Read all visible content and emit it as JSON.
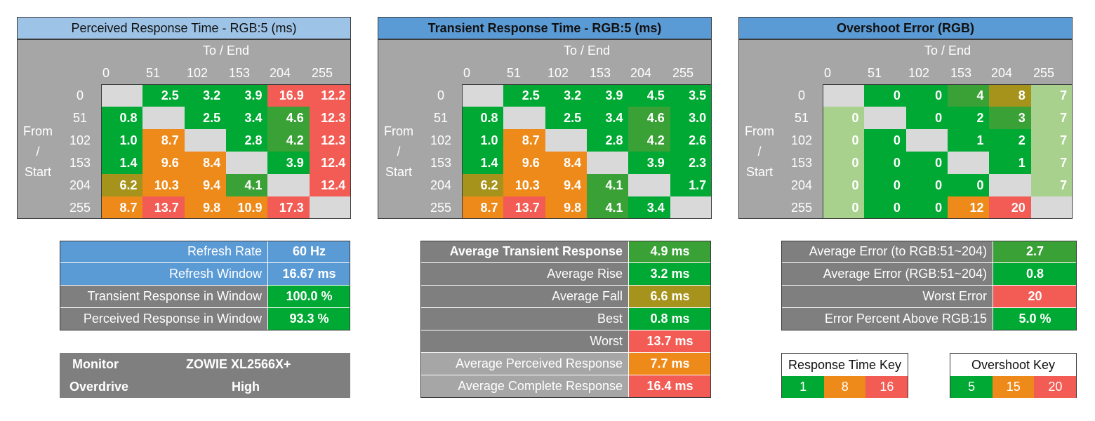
{
  "col_values": [
    "0",
    "51",
    "102",
    "153",
    "204",
    "255"
  ],
  "row_values": [
    "0",
    "51",
    "102",
    "153",
    "204",
    "255"
  ],
  "to_end_label": "To / End",
  "from_start_label": [
    "From",
    "/",
    "Start"
  ],
  "matrices": [
    {
      "title": "Perceived Response Time - RGB:5 (ms)",
      "rows": [
        [
          [
            "",
            "ry"
          ],
          [
            "2.5",
            "g"
          ],
          [
            "3.2",
            "g"
          ],
          [
            "3.9",
            "g"
          ],
          [
            "16.9",
            "rd"
          ],
          [
            "12.2",
            "rd"
          ]
        ],
        [
          [
            "0.8",
            "g"
          ],
          [
            "",
            "ry"
          ],
          [
            "2.5",
            "g"
          ],
          [
            "3.4",
            "g"
          ],
          [
            "4.6",
            "g2"
          ],
          [
            "12.3",
            "rd"
          ]
        ],
        [
          [
            "1.0",
            "g"
          ],
          [
            "8.7",
            "or"
          ],
          [
            "",
            "ry"
          ],
          [
            "2.8",
            "g"
          ],
          [
            "4.2",
            "g2"
          ],
          [
            "12.3",
            "rd"
          ]
        ],
        [
          [
            "1.4",
            "g"
          ],
          [
            "9.6",
            "or"
          ],
          [
            "8.4",
            "or"
          ],
          [
            "",
            "ry"
          ],
          [
            "3.9",
            "g"
          ],
          [
            "12.4",
            "rd"
          ]
        ],
        [
          [
            "6.2",
            "ol"
          ],
          [
            "10.3",
            "or"
          ],
          [
            "9.4",
            "or"
          ],
          [
            "4.1",
            "g2"
          ],
          [
            "",
            "ry"
          ],
          [
            "12.4",
            "rd"
          ]
        ],
        [
          [
            "8.7",
            "or"
          ],
          [
            "13.7",
            "rd"
          ],
          [
            "9.8",
            "or"
          ],
          [
            "10.9",
            "or"
          ],
          [
            "17.3",
            "rd"
          ],
          [
            "",
            "ry"
          ]
        ]
      ]
    },
    {
      "title": "Transient Response Time - RGB:5 (ms)",
      "rows": [
        [
          [
            "",
            "ry"
          ],
          [
            "2.5",
            "g"
          ],
          [
            "3.2",
            "g"
          ],
          [
            "3.9",
            "g"
          ],
          [
            "4.5",
            "g"
          ],
          [
            "3.5",
            "g"
          ]
        ],
        [
          [
            "0.8",
            "g"
          ],
          [
            "",
            "ry"
          ],
          [
            "2.5",
            "g"
          ],
          [
            "3.4",
            "g"
          ],
          [
            "4.6",
            "g2"
          ],
          [
            "3.0",
            "g"
          ]
        ],
        [
          [
            "1.0",
            "g"
          ],
          [
            "8.7",
            "or"
          ],
          [
            "",
            "ry"
          ],
          [
            "2.8",
            "g"
          ],
          [
            "4.2",
            "g2"
          ],
          [
            "2.6",
            "g"
          ]
        ],
        [
          [
            "1.4",
            "g"
          ],
          [
            "9.6",
            "or"
          ],
          [
            "8.4",
            "or"
          ],
          [
            "",
            "ry"
          ],
          [
            "3.9",
            "g"
          ],
          [
            "2.3",
            "g"
          ]
        ],
        [
          [
            "6.2",
            "ol"
          ],
          [
            "10.3",
            "or"
          ],
          [
            "9.4",
            "or"
          ],
          [
            "4.1",
            "g2"
          ],
          [
            "",
            "ry"
          ],
          [
            "1.7",
            "g"
          ]
        ],
        [
          [
            "8.7",
            "or"
          ],
          [
            "13.7",
            "rd"
          ],
          [
            "9.8",
            "or"
          ],
          [
            "4.1",
            "g2"
          ],
          [
            "3.4",
            "g"
          ],
          [
            "",
            "ry"
          ]
        ]
      ]
    },
    {
      "title": "Overshoot Error (RGB)",
      "rows": [
        [
          [
            "",
            "ry"
          ],
          [
            "0",
            "g"
          ],
          [
            "0",
            "g"
          ],
          [
            "4",
            "g2"
          ],
          [
            "8",
            "ol"
          ],
          [
            "7",
            "gl"
          ]
        ],
        [
          [
            "0",
            "gl"
          ],
          [
            "",
            "ry"
          ],
          [
            "0",
            "g"
          ],
          [
            "2",
            "g"
          ],
          [
            "3",
            "g2"
          ],
          [
            "7",
            "gl"
          ]
        ],
        [
          [
            "0",
            "gl"
          ],
          [
            "0",
            "g"
          ],
          [
            "",
            "ry"
          ],
          [
            "1",
            "g"
          ],
          [
            "2",
            "g"
          ],
          [
            "7",
            "gl"
          ]
        ],
        [
          [
            "0",
            "gl"
          ],
          [
            "0",
            "g"
          ],
          [
            "0",
            "g"
          ],
          [
            "",
            "ry"
          ],
          [
            "1",
            "g"
          ],
          [
            "7",
            "gl"
          ]
        ],
        [
          [
            "0",
            "gl"
          ],
          [
            "0",
            "g"
          ],
          [
            "0",
            "g"
          ],
          [
            "0",
            "g"
          ],
          [
            "",
            "ry"
          ],
          [
            "7",
            "gl"
          ]
        ],
        [
          [
            "0",
            "gl"
          ],
          [
            "0",
            "g"
          ],
          [
            "0",
            "g"
          ],
          [
            "12",
            "or"
          ],
          [
            "20",
            "rd"
          ],
          [
            "",
            "ry"
          ]
        ]
      ]
    }
  ],
  "refresh_panel": [
    {
      "label": "Refresh Rate",
      "value": "60 Hz",
      "label_color": "bl",
      "value_color": "bl"
    },
    {
      "label": "Refresh Window",
      "value": "16.67 ms",
      "label_color": "bl",
      "value_color": "bl"
    },
    {
      "label": "Transient Response in Window",
      "value": "100.0 %",
      "label_color": "gy",
      "value_color": "g"
    },
    {
      "label": "Perceived Response in Window",
      "value": "93.3 %",
      "label_color": "gy",
      "value_color": "g"
    }
  ],
  "monitor_panel": {
    "monitor_label": "Monitor",
    "monitor_value": "ZOWIE XL2566X+",
    "overdrive_label": "Overdrive",
    "overdrive_value": "High"
  },
  "transient_panel": [
    {
      "label": "Average Transient Response",
      "value": "4.9 ms",
      "label_color": "gy",
      "value_color": "g2",
      "bold": true
    },
    {
      "label": "Average Rise",
      "value": "3.2 ms",
      "label_color": "gy",
      "value_color": "g"
    },
    {
      "label": "Average Fall",
      "value": "6.6 ms",
      "label_color": "gy",
      "value_color": "ol"
    },
    {
      "label": "Best",
      "value": "0.8 ms",
      "label_color": "gy",
      "value_color": "g"
    },
    {
      "label": "Worst",
      "value": "13.7 ms",
      "label_color": "gy",
      "value_color": "rd"
    },
    {
      "label": "Average Perceived Response",
      "value": "7.7 ms",
      "label_color": "gy2",
      "value_color": "or"
    },
    {
      "label": "Average Complete Response",
      "value": "16.4 ms",
      "label_color": "gy2",
      "value_color": "rd"
    }
  ],
  "error_panel": [
    {
      "label": "Average Error (to RGB:51~204)",
      "value": "2.7",
      "label_color": "gy",
      "value_color": "g2"
    },
    {
      "label": "Average Error (RGB:51~204)",
      "value": "0.8",
      "label_color": "gy",
      "value_color": "g"
    },
    {
      "label": "Worst Error",
      "value": "20",
      "label_color": "gy",
      "value_color": "rd"
    },
    {
      "label": "Error Percent Above RGB:15",
      "value": "5.0 %",
      "label_color": "gy",
      "value_color": "g"
    }
  ],
  "response_key": {
    "title": "Response Time Key",
    "values": [
      "1",
      "8",
      "16"
    ],
    "colors": [
      "g",
      "or",
      "rd"
    ]
  },
  "overshoot_key": {
    "title": "Overshoot Key",
    "values": [
      "5",
      "15",
      "20"
    ],
    "colors": [
      "g",
      "or",
      "rd"
    ]
  }
}
